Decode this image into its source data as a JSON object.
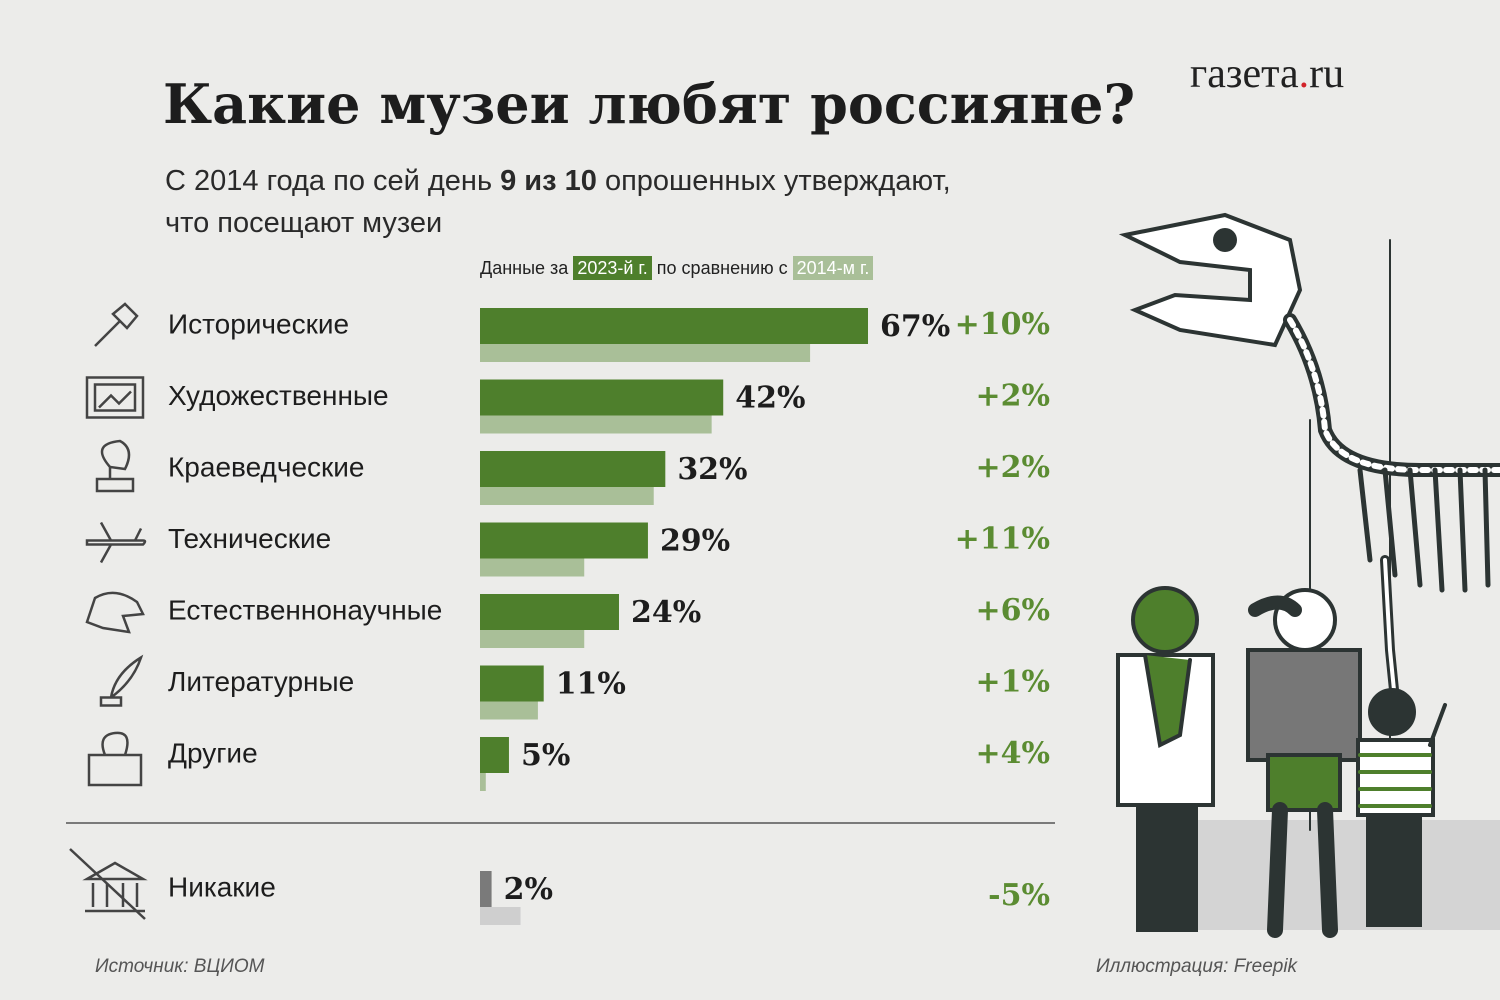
{
  "header": {
    "title": "Какие музеи любят россияне?",
    "subtitle_parts": [
      "С 2014 года по сей день",
      "9 из 10",
      "опрошенных утверждают,",
      "что посещают музеи"
    ],
    "logo": [
      "газета",
      ".",
      "ru"
    ]
  },
  "chart_data": [
    {
      "type": "bar",
      "orientation": "horizontal",
      "legend_parts": [
        "Данные за",
        "по сравнению с"
      ],
      "categories": [
        "Исторические",
        "Художественные",
        "Краеведческие",
        "Технические",
        "Естественнонаучные",
        "Литературные",
        "Другие"
      ],
      "series": [
        {
          "name": "2023-й г.",
          "color": "#4e7f2c",
          "values": [
            67,
            42,
            32,
            29,
            24,
            11,
            5
          ],
          "value_labels": [
            "67%",
            "42%",
            "32%",
            "29%",
            "24%",
            "11%",
            "5%"
          ]
        },
        {
          "name": "2014-м г.",
          "color": "#a9bf98",
          "values": [
            57,
            40,
            30,
            18,
            18,
            10,
            1
          ]
        }
      ],
      "changes": [
        "+10%",
        "+2%",
        "+2%",
        "+11%",
        "+6%",
        "+1%",
        "+4%"
      ],
      "change_color": "#5b8c32"
    },
    {
      "type": "bar",
      "orientation": "horizontal",
      "categories": [
        "Никакие"
      ],
      "series": [
        {
          "color": "#7a7a7a",
          "values": [
            2
          ],
          "value_labels": [
            "2%"
          ]
        },
        {
          "color": "#cfcfcf",
          "values": [
            7
          ]
        }
      ],
      "changes": [
        "-5%"
      ],
      "change_color": "#5b8c32"
    }
  ],
  "footer": {
    "source": "Источник: ВЦИОМ",
    "credit": "Иллюстрация: Freepik"
  }
}
